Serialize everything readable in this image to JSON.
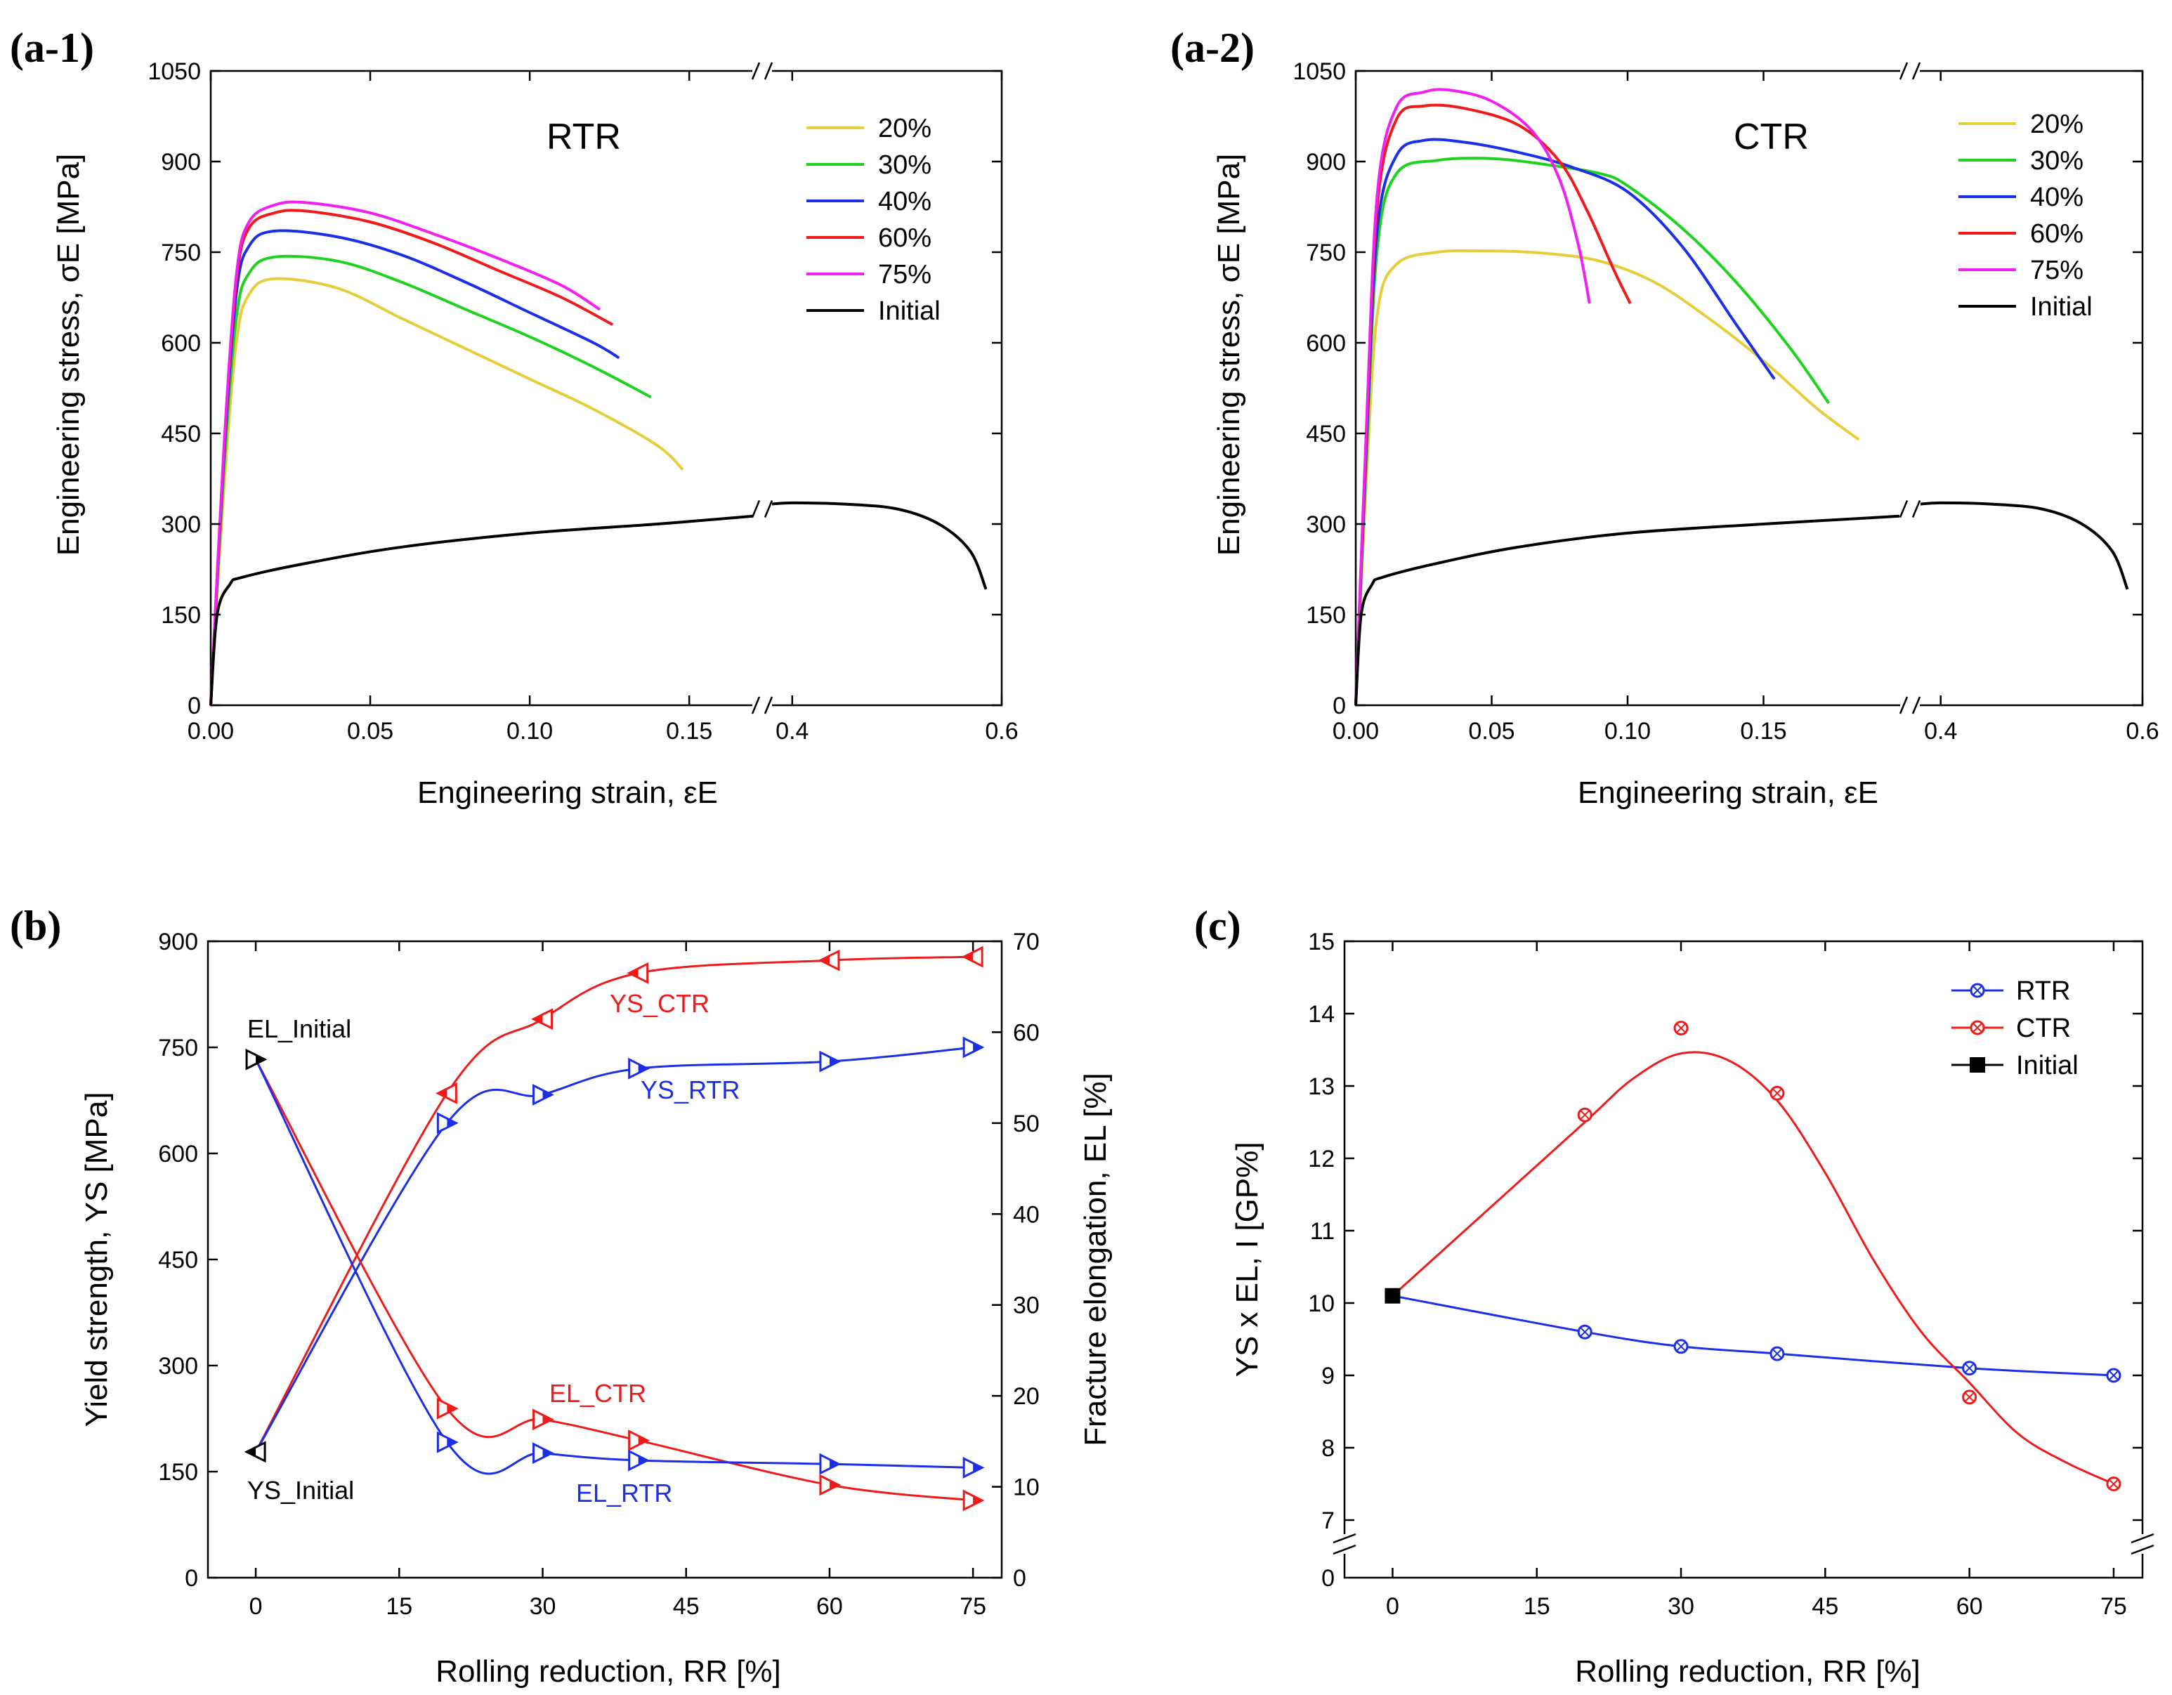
{
  "colors": {
    "20%": "#e6cd3c",
    "30%": "#1fd21f",
    "40%": "#1b2fe6",
    "60%": "#ef1b1b",
    "75%": "#f020f0",
    "Initial": "#000000",
    "RTR": "#1b2fe6",
    "CTR": "#ef1b1b"
  },
  "chart_data": [
    {
      "id": "a1",
      "type": "line",
      "panel_label": "(a-1)",
      "title": "RTR",
      "xlabel": "Engineering strain, εE",
      "ylabel": "Engineering stress, σE [MPa]",
      "xlim": [
        0,
        0.6
      ],
      "axis_break_x": [
        0.17,
        0.38
      ],
      "ylim": [
        0,
        1050
      ],
      "xticks": [
        0.0,
        0.05,
        0.1,
        0.15,
        0.4,
        0.6
      ],
      "xtick_labels": [
        "0.00",
        "0.05",
        "0.10",
        "0.15",
        "0.4",
        "0.6"
      ],
      "yticks": [
        0,
        150,
        300,
        450,
        600,
        750,
        900,
        1050
      ],
      "legend": [
        "20%",
        "30%",
        "40%",
        "60%",
        "75%",
        "Initial"
      ],
      "series": [
        {
          "name": "20%",
          "x": [
            0,
            0.004,
            0.008,
            0.012,
            0.02,
            0.04,
            0.06,
            0.08,
            0.1,
            0.12,
            0.14,
            0.148
          ],
          "y": [
            0,
            350,
            600,
            680,
            706,
            690,
            640,
            590,
            540,
            490,
            430,
            390
          ]
        },
        {
          "name": "30%",
          "x": [
            0,
            0.004,
            0.008,
            0.012,
            0.02,
            0.04,
            0.06,
            0.08,
            0.1,
            0.12,
            0.138
          ],
          "y": [
            0,
            380,
            640,
            715,
            742,
            735,
            700,
            655,
            610,
            560,
            510
          ]
        },
        {
          "name": "40%",
          "x": [
            0,
            0.004,
            0.008,
            0.012,
            0.02,
            0.04,
            0.06,
            0.08,
            0.1,
            0.12,
            0.128
          ],
          "y": [
            0,
            400,
            680,
            760,
            785,
            775,
            745,
            700,
            650,
            600,
            575
          ]
        },
        {
          "name": "60%",
          "x": [
            0,
            0.004,
            0.008,
            0.012,
            0.02,
            0.03,
            0.05,
            0.07,
            0.09,
            0.11,
            0.126
          ],
          "y": [
            0,
            410,
            700,
            790,
            815,
            818,
            800,
            765,
            720,
            675,
            630
          ]
        },
        {
          "name": "75%",
          "x": [
            0,
            0.004,
            0.008,
            0.012,
            0.02,
            0.03,
            0.05,
            0.07,
            0.09,
            0.11,
            0.122
          ],
          "y": [
            0,
            415,
            710,
            800,
            828,
            832,
            815,
            780,
            740,
            695,
            655
          ]
        },
        {
          "name": "Initial",
          "x": [
            0,
            0.002,
            0.006,
            0.01,
            0.03,
            0.06,
            0.1,
            0.14,
            0.17,
            0.38,
            0.4,
            0.45,
            0.5,
            0.54,
            0.57,
            0.585
          ],
          "y": [
            0,
            150,
            200,
            212,
            235,
            262,
            285,
            300,
            313,
            333,
            335,
            333,
            325,
            300,
            255,
            192
          ]
        }
      ]
    },
    {
      "id": "a2",
      "type": "line",
      "panel_label": "(a-2)",
      "title": "CTR",
      "xlabel": "Engineering strain, εE",
      "ylabel": "Engineering stress, σE [MPa]",
      "xlim": [
        0,
        0.6
      ],
      "axis_break_x": [
        0.2,
        0.38
      ],
      "ylim": [
        0,
        1050
      ],
      "xticks": [
        0.0,
        0.05,
        0.1,
        0.15,
        0.4,
        0.6
      ],
      "xtick_labels": [
        "0.00",
        "0.05",
        "0.10",
        "0.15",
        "0.4",
        "0.6"
      ],
      "yticks": [
        0,
        150,
        300,
        450,
        600,
        750,
        900,
        1050
      ],
      "legend": [
        "20%",
        "30%",
        "40%",
        "60%",
        "75%",
        "Initial"
      ],
      "series": [
        {
          "name": "20%",
          "x": [
            0,
            0.004,
            0.008,
            0.015,
            0.03,
            0.05,
            0.07,
            0.09,
            0.11,
            0.13,
            0.15,
            0.17,
            0.185
          ],
          "y": [
            0,
            380,
            650,
            730,
            750,
            752,
            748,
            735,
            700,
            640,
            570,
            490,
            440
          ]
        },
        {
          "name": "30%",
          "x": [
            0,
            0.004,
            0.008,
            0.015,
            0.03,
            0.05,
            0.07,
            0.09,
            0.1,
            0.12,
            0.14,
            0.16,
            0.174
          ],
          "y": [
            0,
            420,
            760,
            880,
            902,
            905,
            895,
            880,
            860,
            790,
            700,
            590,
            500
          ]
        },
        {
          "name": "40%",
          "x": [
            0,
            0.004,
            0.008,
            0.015,
            0.025,
            0.04,
            0.06,
            0.08,
            0.1,
            0.12,
            0.14,
            0.154
          ],
          "y": [
            0,
            440,
            790,
            910,
            935,
            932,
            915,
            890,
            850,
            760,
            630,
            540
          ]
        },
        {
          "name": "60%",
          "x": [
            0,
            0.004,
            0.008,
            0.015,
            0.025,
            0.04,
            0.06,
            0.075,
            0.085,
            0.095,
            0.101
          ],
          "y": [
            0,
            460,
            830,
            970,
            992,
            988,
            960,
            900,
            820,
            720,
            665
          ]
        },
        {
          "name": "75%",
          "x": [
            0,
            0.004,
            0.008,
            0.015,
            0.025,
            0.035,
            0.05,
            0.065,
            0.075,
            0.082,
            0.086
          ],
          "y": [
            0,
            470,
            850,
            990,
            1015,
            1018,
            1000,
            950,
            870,
            760,
            665
          ]
        },
        {
          "name": "Initial",
          "x": [
            0,
            0.002,
            0.006,
            0.01,
            0.03,
            0.06,
            0.1,
            0.15,
            0.2,
            0.38,
            0.4,
            0.45,
            0.5,
            0.54,
            0.57,
            0.585
          ],
          "y": [
            0,
            150,
            200,
            212,
            235,
            262,
            285,
            300,
            313,
            333,
            335,
            333,
            325,
            300,
            255,
            192
          ]
        }
      ]
    },
    {
      "id": "b",
      "type": "line",
      "panel_label": "(b)",
      "xlabel": "Rolling reduction, RR [%]",
      "ylabel": "Yield strength, YS [MPa]",
      "ylabel_right": "Fracture elongation, EL [%]",
      "xlim": [
        -5,
        78
      ],
      "ylim": [
        0,
        900
      ],
      "ylim_right": [
        0,
        70
      ],
      "xticks": [
        0,
        15,
        30,
        45,
        60,
        75
      ],
      "yticks": [
        0,
        150,
        300,
        450,
        600,
        750,
        900
      ],
      "yticks_right": [
        0,
        10,
        20,
        30,
        40,
        50,
        60,
        70
      ],
      "annotations": [
        {
          "text": "EL_Initial",
          "color": "#000000"
        },
        {
          "text": "YS_Initial",
          "color": "#000000"
        },
        {
          "text": "YS_CTR",
          "color": "#ef1b1b"
        },
        {
          "text": "YS_RTR",
          "color": "#1b2fe6"
        },
        {
          "text": "EL_CTR",
          "color": "#ef1b1b"
        },
        {
          "text": "EL_RTR",
          "color": "#1b2fe6"
        }
      ],
      "series": [
        {
          "name": "YS_CTR",
          "axis": "left",
          "color": "CTR",
          "x": [
            0,
            20,
            30,
            40,
            60,
            75
          ],
          "y": [
            178,
            685,
            790,
            855,
            873,
            878
          ]
        },
        {
          "name": "YS_RTR",
          "axis": "left",
          "color": "RTR",
          "x": [
            0,
            20,
            30,
            40,
            60,
            75
          ],
          "y": [
            178,
            643,
            683,
            720,
            730,
            750
          ]
        },
        {
          "name": "EL_CTR",
          "axis": "right",
          "color": "CTR",
          "x": [
            0,
            20,
            30,
            40,
            60,
            75
          ],
          "y": [
            57,
            18.6,
            17.4,
            15.1,
            10.2,
            8.5
          ]
        },
        {
          "name": "EL_RTR",
          "axis": "right",
          "color": "RTR",
          "x": [
            0,
            20,
            30,
            40,
            60,
            75
          ],
          "y": [
            57,
            14.9,
            13.7,
            12.9,
            12.5,
            12.1
          ]
        }
      ]
    },
    {
      "id": "c",
      "type": "line",
      "panel_label": "(c)",
      "xlabel": "Rolling reduction, RR [%]",
      "ylabel": "YS x EL, I [GP%]",
      "xlim": [
        -5,
        78
      ],
      "ylim": [
        7,
        15
      ],
      "yticks": [
        7,
        8,
        9,
        10,
        11,
        12,
        13,
        14,
        15
      ],
      "ytick_zero_label": "0",
      "xticks": [
        0,
        15,
        30,
        45,
        60,
        75
      ],
      "legend": [
        "RTR",
        "CTR",
        "Initial"
      ],
      "series": [
        {
          "name": "RTR",
          "color": "RTR",
          "x": [
            0,
            20,
            30,
            40,
            60,
            75
          ],
          "y": [
            10.1,
            9.6,
            9.4,
            9.3,
            9.1,
            9.0
          ]
        },
        {
          "name": "CTR",
          "color": "CTR",
          "x": [
            0,
            20,
            30,
            40,
            60,
            75
          ],
          "y": [
            10.1,
            12.6,
            13.8,
            12.9,
            8.7,
            7.5
          ]
        },
        {
          "name": "Initial",
          "color": "Initial",
          "x": [
            0
          ],
          "y": [
            10.1
          ]
        }
      ]
    }
  ]
}
